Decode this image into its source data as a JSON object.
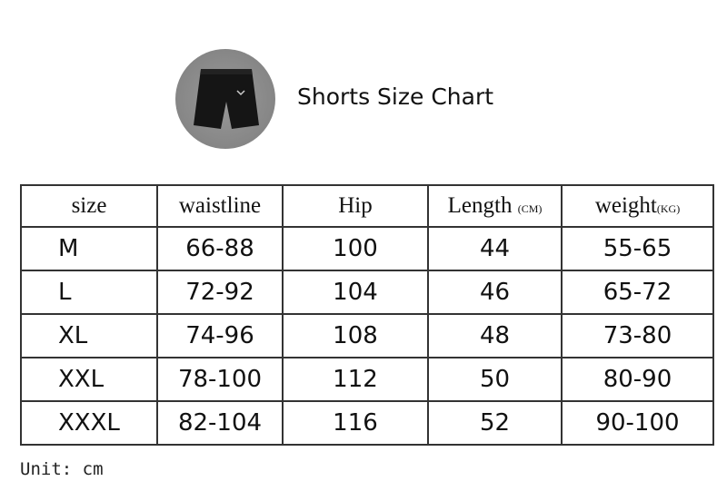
{
  "header": {
    "title": "Shorts Size Chart",
    "image": "black-shorts-photo"
  },
  "table": {
    "columns": [
      {
        "label": "size",
        "unit": ""
      },
      {
        "label": "waistline",
        "unit": ""
      },
      {
        "label": "Hip",
        "unit": ""
      },
      {
        "label": "Length",
        "unit": "(CM)"
      },
      {
        "label": "weight",
        "unit": "(KG)"
      }
    ],
    "rows": [
      [
        "M",
        "66-88",
        "100",
        "44",
        "55-65"
      ],
      [
        "L",
        "72-92",
        "104",
        "46",
        "65-72"
      ],
      [
        "XL",
        "74-96",
        "108",
        "48",
        "73-80"
      ],
      [
        "XXL",
        "78-100",
        "112",
        "50",
        "80-90"
      ],
      [
        "XXXL",
        "82-104",
        "116",
        "52",
        "90-100"
      ]
    ]
  },
  "footer": {
    "unit_note": "Unit: cm"
  }
}
